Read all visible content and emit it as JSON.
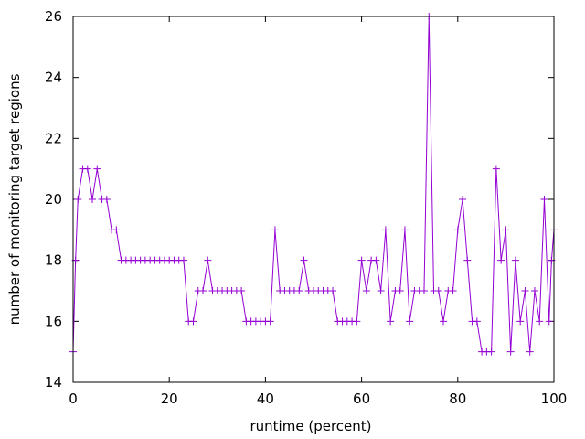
{
  "chart_data": {
    "type": "line",
    "title": "",
    "xlabel": "runtime (percent)",
    "ylabel": "number of monitoring target regions",
    "xlim": [
      0,
      100
    ],
    "ylim": [
      14,
      26
    ],
    "xticks": [
      0,
      20,
      40,
      60,
      80,
      100
    ],
    "yticks": [
      14,
      16,
      18,
      20,
      22,
      24,
      26
    ],
    "grid": false,
    "legend": "none",
    "marker": "plus",
    "color": "#9400d3",
    "series": [
      {
        "x": [
          0,
          0.5,
          1,
          2,
          3,
          4,
          5,
          6,
          7,
          8,
          9,
          10,
          11,
          12,
          13,
          14,
          15,
          16,
          17,
          18,
          19,
          20,
          21,
          22,
          23,
          24,
          25,
          26,
          27,
          28,
          29,
          30,
          31,
          32,
          33,
          34,
          35,
          36,
          37,
          38,
          39,
          40,
          41,
          42,
          43,
          44,
          45,
          46,
          47,
          48,
          49,
          50,
          51,
          52,
          53,
          54,
          55,
          56,
          57,
          58,
          59,
          60,
          61,
          62,
          63,
          64,
          65,
          66,
          67,
          68,
          69,
          70,
          71,
          72,
          73,
          74,
          75,
          76,
          77,
          78,
          79,
          80,
          81,
          82,
          83,
          84,
          85,
          86,
          87,
          88,
          89,
          90,
          91,
          92,
          93,
          94,
          95,
          96,
          97,
          98,
          99,
          99.5,
          100
        ],
        "y": [
          15,
          18,
          20,
          21,
          21,
          20,
          21,
          20,
          20,
          19,
          19,
          18,
          18,
          18,
          18,
          18,
          18,
          18,
          18,
          18,
          18,
          18,
          18,
          18,
          18,
          16,
          16,
          17,
          17,
          18,
          17,
          17,
          17,
          17,
          17,
          17,
          17,
          16,
          16,
          16,
          16,
          16,
          16,
          19,
          17,
          17,
          17,
          17,
          17,
          18,
          17,
          17,
          17,
          17,
          17,
          17,
          16,
          16,
          16,
          16,
          16,
          18,
          17,
          18,
          18,
          17,
          19,
          16,
          17,
          17,
          19,
          16,
          17,
          17,
          17,
          26,
          17,
          17,
          16,
          17,
          17,
          19,
          20,
          18,
          16,
          16,
          15,
          15,
          15,
          21,
          18,
          19,
          15,
          18,
          16,
          17,
          15,
          17,
          16,
          20,
          16,
          18,
          19
        ]
      }
    ]
  }
}
